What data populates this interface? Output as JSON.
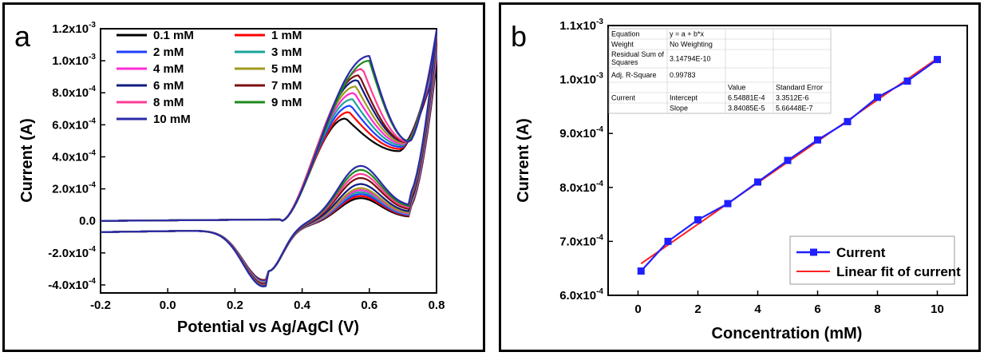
{
  "chart_data": [
    {
      "type": "line",
      "panel_label": "a",
      "xlabel": "Potential vs Ag/AgCl (V)",
      "ylabel": "Current (A)",
      "xlim": [
        -0.2,
        0.8
      ],
      "ylim": [
        -0.00045,
        0.0012
      ],
      "xticks": [
        "-0.2",
        "0.0",
        "0.2",
        "0.4",
        "0.6",
        "0.8"
      ],
      "yticks": [
        {
          "value": -0.0004,
          "base": "-4.0x10",
          "exp": "-4"
        },
        {
          "value": -0.0002,
          "base": "-2.0x10",
          "exp": "-4"
        },
        {
          "value": 0.0,
          "base": "0.0",
          "exp": ""
        },
        {
          "value": 0.0002,
          "base": "2.0x10",
          "exp": "-4"
        },
        {
          "value": 0.0004,
          "base": "4.0x10",
          "exp": "-4"
        },
        {
          "value": 0.0006,
          "base": "6.0x10",
          "exp": "-4"
        },
        {
          "value": 0.0008,
          "base": "8.0x10",
          "exp": "-4"
        },
        {
          "value": 0.001,
          "base": "1.0x10",
          "exp": "-3"
        },
        {
          "value": 0.0012,
          "base": "1.2x10",
          "exp": "-3"
        }
      ],
      "legend_position": "top-left",
      "series": [
        {
          "name": "0.1 mM",
          "color": "#000000",
          "anodic_peak_potential": 0.53,
          "anodic_peak_current": 0.00064,
          "return_peak_current": 0.00015
        },
        {
          "name": "1 mM",
          "color": "#ff0000",
          "anodic_peak_potential": 0.54,
          "anodic_peak_current": 0.00068,
          "return_peak_current": 0.00016
        },
        {
          "name": "2 mM",
          "color": "#1f3fff",
          "anodic_peak_potential": 0.545,
          "anodic_peak_current": 0.00072,
          "return_peak_current": 0.00017
        },
        {
          "name": "3 mM",
          "color": "#1aa59a",
          "anodic_peak_potential": 0.55,
          "anodic_peak_current": 0.00076,
          "return_peak_current": 0.00018
        },
        {
          "name": "4 mM",
          "color": "#ff2cd5",
          "anodic_peak_potential": 0.555,
          "anodic_peak_current": 0.0008,
          "return_peak_current": 0.00019
        },
        {
          "name": "5 mM",
          "color": "#a09a1c",
          "anodic_peak_potential": 0.56,
          "anodic_peak_current": 0.00084,
          "return_peak_current": 0.0002
        },
        {
          "name": "6 mM",
          "color": "#101c80",
          "anodic_peak_potential": 0.565,
          "anodic_peak_current": 0.00088,
          "return_peak_current": 0.00022
        },
        {
          "name": "7 mM",
          "color": "#7a1010",
          "anodic_peak_potential": 0.57,
          "anodic_peak_current": 0.00091,
          "return_peak_current": 0.00025
        },
        {
          "name": "8 mM",
          "color": "#ff3c95",
          "anodic_peak_potential": 0.58,
          "anodic_peak_current": 0.00095,
          "return_peak_current": 0.00027
        },
        {
          "name": "9 mM",
          "color": "#1c8a1c",
          "anodic_peak_potential": 0.6,
          "anodic_peak_current": 0.001,
          "return_peak_current": 0.00029
        },
        {
          "name": "10 mM",
          "color": "#2a2aa8",
          "anodic_peak_potential": 0.6,
          "anodic_peak_current": 0.00103,
          "return_peak_current": 0.00031
        }
      ]
    },
    {
      "type": "line",
      "panel_label": "b",
      "xlabel": "Concentration (mM)",
      "ylabel": "Current (A)",
      "xlim": [
        -1,
        11
      ],
      "ylim": [
        0.0006,
        0.0011
      ],
      "xticks": [
        "0",
        "2",
        "4",
        "6",
        "8",
        "10"
      ],
      "yticks": [
        {
          "value": 0.0006,
          "base": "6.0x10",
          "exp": "-4"
        },
        {
          "value": 0.0007,
          "base": "7.0x10",
          "exp": "-4"
        },
        {
          "value": 0.0008,
          "base": "8.0x10",
          "exp": "-4"
        },
        {
          "value": 0.0009,
          "base": "9.0x10",
          "exp": "-4"
        },
        {
          "value": 0.001,
          "base": "1.0x10",
          "exp": "-3"
        },
        {
          "value": 0.0011,
          "base": "1.1x10",
          "exp": "-3"
        }
      ],
      "legend_position": "bottom-right",
      "series": [
        {
          "name": "Current",
          "color": "#1f1fff",
          "marker": "square",
          "x": [
            0.1,
            1,
            2,
            3,
            4,
            5,
            6,
            7,
            8,
            9,
            10
          ],
          "y": [
            0.000645,
            0.0007,
            0.00074,
            0.00077,
            0.00081,
            0.00085,
            0.000888,
            0.000922,
            0.000967,
            0.000997,
            0.001037
          ]
        },
        {
          "name": "Linear fit of current",
          "color": "#ff2020",
          "x": [
            0.1,
            10
          ],
          "y": [
            0.0006588,
            0.0010391
          ]
        }
      ],
      "fit_table": [
        [
          "Equation",
          "y = a + b*x",
          "",
          ""
        ],
        [
          "Weight",
          "No Weighting",
          "",
          ""
        ],
        [
          "Residual Sum of Squares",
          "3.14794E-10",
          "",
          ""
        ],
        [
          "Adj. R-Square",
          "0.99783",
          "",
          ""
        ],
        [
          "",
          "",
          "Value",
          "Standard Error"
        ],
        [
          "Current",
          "Intercept",
          "6.54881E-4",
          "3.3512E-6"
        ],
        [
          "",
          "Slope",
          "3.84085E-5",
          "5.66448E-7"
        ]
      ]
    }
  ]
}
